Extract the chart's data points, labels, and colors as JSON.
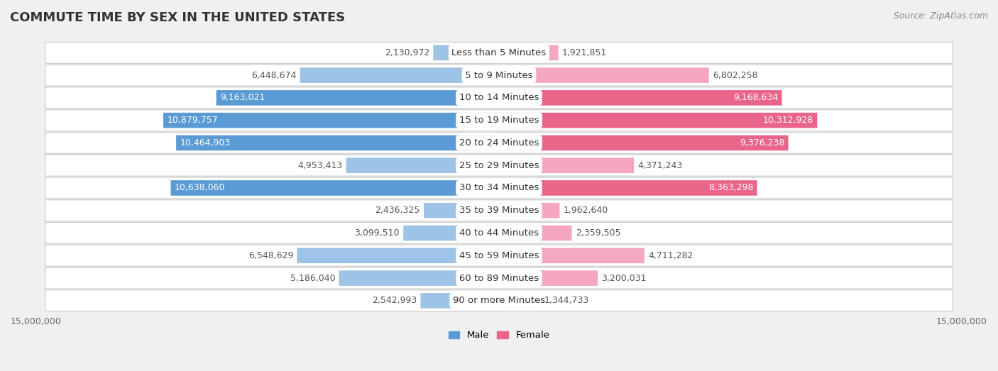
{
  "title": "COMMUTE TIME BY SEX IN THE UNITED STATES",
  "source": "Source: ZipAtlas.com",
  "categories": [
    "Less than 5 Minutes",
    "5 to 9 Minutes",
    "10 to 14 Minutes",
    "15 to 19 Minutes",
    "20 to 24 Minutes",
    "25 to 29 Minutes",
    "30 to 34 Minutes",
    "35 to 39 Minutes",
    "40 to 44 Minutes",
    "45 to 59 Minutes",
    "60 to 89 Minutes",
    "90 or more Minutes"
  ],
  "male_values": [
    2130972,
    6448674,
    9163021,
    10879757,
    10464903,
    4953413,
    10638060,
    2436325,
    3099510,
    6548629,
    5186040,
    2542993
  ],
  "female_values": [
    1921851,
    6802258,
    9168634,
    10312928,
    9376238,
    4371243,
    8363298,
    1962640,
    2359505,
    4711282,
    3200031,
    1344733
  ],
  "male_color_dark": "#5b9bd5",
  "male_color_light": "#9dc3e6",
  "female_color_dark": "#e9668a",
  "female_color_light": "#f4a7be",
  "male_label": "Male",
  "female_label": "Female",
  "xlim": 15000000,
  "background_color": "#f0f0f0",
  "row_bg_color": "#ffffff",
  "row_border_color": "#cccccc",
  "title_fontsize": 13,
  "label_fontsize": 9.5,
  "value_fontsize": 9,
  "tick_fontsize": 9,
  "source_fontsize": 9,
  "threshold_large": 7500000
}
